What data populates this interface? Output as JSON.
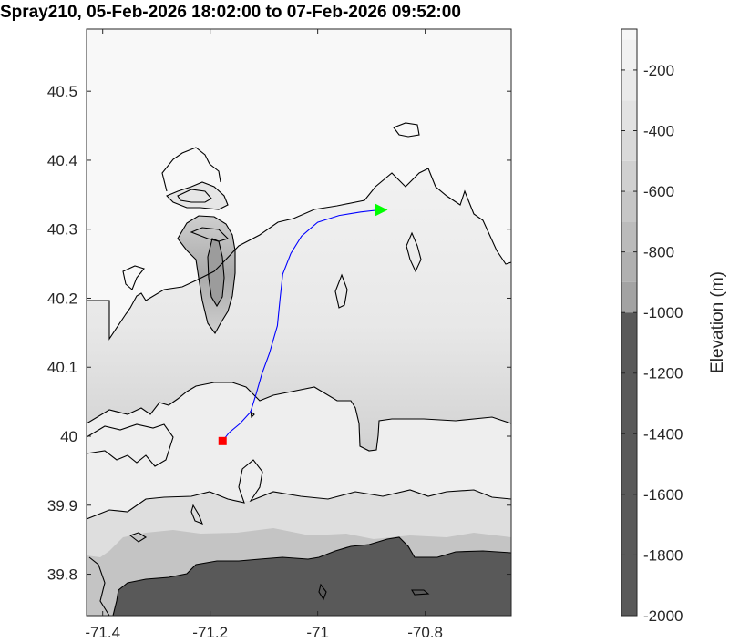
{
  "chart_data": {
    "type": "contour",
    "title": "Spray210, 05-Feb-2026 18:02:00 to 07-Feb-2026 09:52:00",
    "xlabel": "",
    "ylabel": "",
    "xlim": [
      -71.43,
      -70.64
    ],
    "ylim": [
      39.74,
      40.59
    ],
    "x_ticks": [
      -71.4,
      -71.2,
      -71.0,
      -70.8
    ],
    "x_tick_labels": [
      "-71.4",
      "-71.2",
      "-71",
      "-70.8"
    ],
    "y_ticks": [
      39.8,
      39.9,
      40.0,
      40.1,
      40.2,
      40.3,
      40.4,
      40.5
    ],
    "y_tick_labels": [
      "39.8",
      "39.9",
      "40",
      "40.1",
      "40.2",
      "40.3",
      "40.4",
      "40.5"
    ],
    "grid": false,
    "colorbar": {
      "label": "Elevation (m)",
      "lim": [
        -2000,
        -65
      ],
      "ticks": [
        -200,
        -400,
        -600,
        -800,
        -1000,
        -1200,
        -1400,
        -1600,
        -1800,
        -2000
      ],
      "tick_labels": [
        "-200",
        "-400",
        "-600",
        "-800",
        "-1000",
        "-1200",
        "-1400",
        "-1600",
        "-1800",
        "-2000"
      ],
      "bands": [
        {
          "from": -2000,
          "to": -1000,
          "color": "#595959"
        },
        {
          "from": -1000,
          "to": -900,
          "color": "#a3a3a3"
        },
        {
          "from": -900,
          "to": -800,
          "color": "#b0b0b0"
        },
        {
          "from": -800,
          "to": -700,
          "color": "#bbbbbb"
        },
        {
          "from": -700,
          "to": -600,
          "color": "#c6c6c6"
        },
        {
          "from": -600,
          "to": -500,
          "color": "#d0d0d0"
        },
        {
          "from": -500,
          "to": -400,
          "color": "#d9d9d9"
        },
        {
          "from": -400,
          "to": -300,
          "color": "#e2e2e2"
        },
        {
          "from": -300,
          "to": -200,
          "color": "#eaeaea"
        },
        {
          "from": -200,
          "to": -100,
          "color": "#f1f1f1"
        },
        {
          "from": -100,
          "to": -65,
          "color": "#f7f7f7"
        }
      ]
    },
    "track": {
      "color": "#0000ff",
      "points": [
        [
          -71.177,
          39.993
        ],
        [
          -71.165,
          40.005
        ],
        [
          -71.145,
          40.018
        ],
        [
          -71.125,
          40.035
        ],
        [
          -71.115,
          40.06
        ],
        [
          -71.104,
          40.09
        ],
        [
          -71.09,
          40.12
        ],
        [
          -71.075,
          40.16
        ],
        [
          -71.07,
          40.2
        ],
        [
          -71.065,
          40.235
        ],
        [
          -71.05,
          40.265
        ],
        [
          -71.03,
          40.29
        ],
        [
          -71.0,
          40.31
        ],
        [
          -70.96,
          40.32
        ],
        [
          -70.92,
          40.325
        ],
        [
          -70.885,
          40.328
        ]
      ],
      "start_marker": {
        "lon": -71.177,
        "lat": 39.993,
        "shape": "square",
        "color": "#ff0000"
      },
      "end_marker": {
        "lon": -70.885,
        "lat": 40.328,
        "shape": "triangle-right",
        "color": "#00ff00"
      }
    }
  }
}
